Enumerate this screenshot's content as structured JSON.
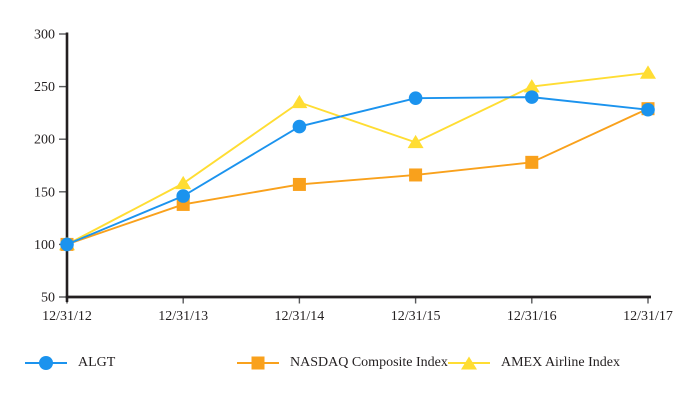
{
  "figure": {
    "background": "#ffffff",
    "text_color": "#231f20",
    "axis_color": "#231f20",
    "tick_color": "#58595b"
  },
  "chart_data": {
    "type": "line",
    "title": "",
    "xlabel": "",
    "ylabel": "",
    "categories": [
      "12/31/12",
      "12/31/13",
      "12/31/14",
      "12/31/15",
      "12/31/16",
      "12/31/17"
    ],
    "series": [
      {
        "name": "ALGT",
        "marker": "circle",
        "color": "#1b93ee",
        "values": [
          100,
          146,
          212,
          239,
          240,
          228
        ]
      },
      {
        "name": "NASDAQ Composite Index",
        "marker": "square",
        "color": "#f9a11c",
        "values": [
          100,
          138,
          157,
          166,
          178,
          229
        ]
      },
      {
        "name": "AMEX Airline Index",
        "marker": "triangle",
        "color": "#ffdd33",
        "values": [
          100,
          158,
          235,
          197,
          250,
          263
        ]
      }
    ],
    "ylim": [
      50,
      300
    ],
    "y_ticks": [
      50,
      100,
      150,
      200,
      250,
      300
    ],
    "grid": false,
    "legend_position": "bottom"
  }
}
